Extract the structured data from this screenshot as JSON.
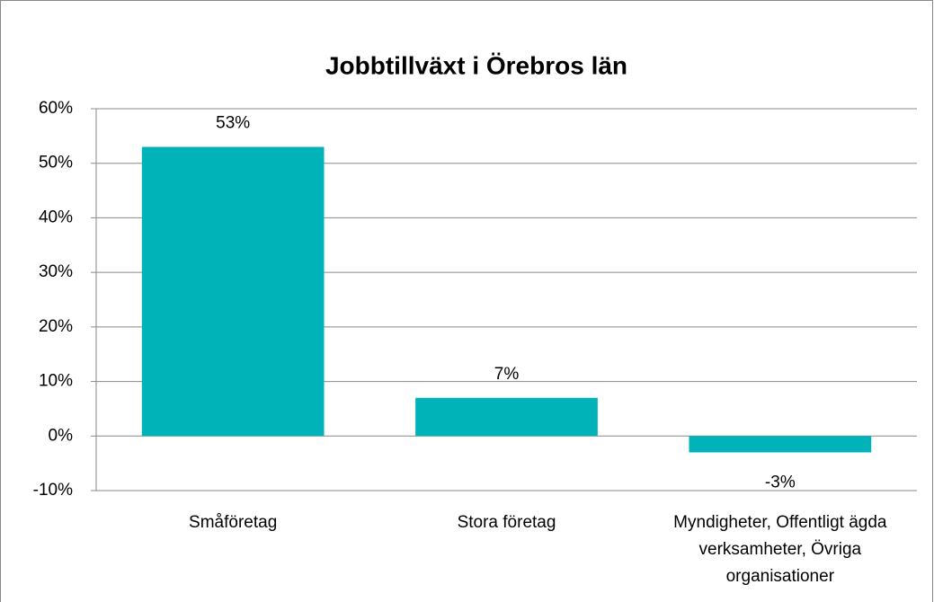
{
  "chart_data": {
    "type": "bar",
    "title": "Jobbtillväxt i Örebros län",
    "categories": [
      "Småföretag",
      "Stora företag",
      "Myndigheter, Offentligt ägda verksamheter, Övriga organisationer"
    ],
    "values": [
      53,
      7,
      -3
    ],
    "value_labels": [
      "53%",
      "7%",
      "-3%"
    ],
    "color": "#00b3b8",
    "ylim": [
      -10,
      60
    ],
    "yticks": [
      {
        "value": -10,
        "label": "-10%"
      },
      {
        "value": 0,
        "label": "0%"
      },
      {
        "value": 10,
        "label": "10%"
      },
      {
        "value": 20,
        "label": "20%"
      },
      {
        "value": 30,
        "label": "30%"
      },
      {
        "value": 40,
        "label": "40%"
      },
      {
        "value": 50,
        "label": "50%"
      },
      {
        "value": 60,
        "label": "60%"
      }
    ],
    "grid": true
  }
}
